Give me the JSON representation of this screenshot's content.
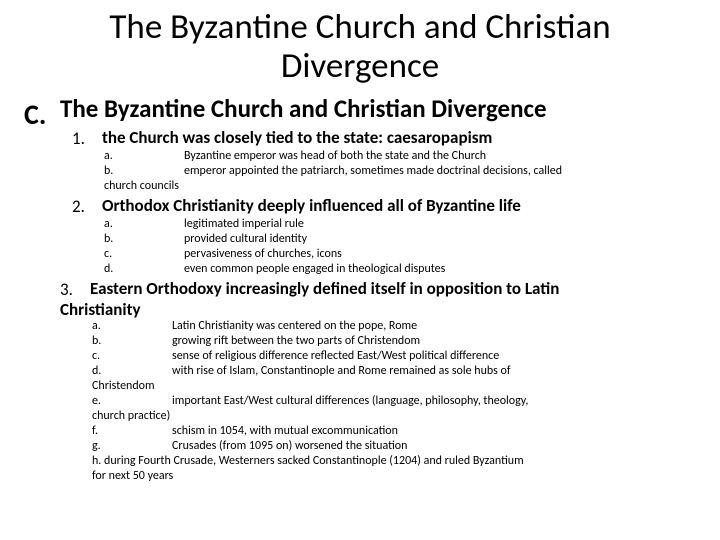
{
  "title": "The Byzantine Church and Christian Divergence",
  "outline_letter": "C.",
  "section_heading": "The Byzantine Church and Christian Divergence",
  "items": [
    {
      "num": "1.",
      "heading": "the Church was closely tied to the state: caesaropapism",
      "subs": [
        {
          "letter": "a.",
          "text": "Byzantine emperor was head of both the state and the Church"
        },
        {
          "letter": "b.",
          "text": "emperor appointed the patriarch, sometimes made doctrinal decisions, called"
        }
      ],
      "tail": "church councils"
    },
    {
      "num": "2.",
      "heading": "Orthodox Christianity deeply influenced all of Byzantine life",
      "subs": [
        {
          "letter": "a.",
          "text": "legitimated imperial rule"
        },
        {
          "letter": "b.",
          "text": "provided cultural identity"
        },
        {
          "letter": "c.",
          "text": "pervasiveness of churches, icons"
        },
        {
          "letter": "d.",
          "text": "even common people engaged in theological disputes"
        }
      ]
    },
    {
      "num": "3.",
      "heading_part1": "Eastern Orthodoxy increasingly defined itself in opposition to Latin",
      "heading_part2": "Christianity",
      "subs": [
        {
          "letter": "a.",
          "text": "Latin Christianity was centered on the pope, Rome"
        },
        {
          "letter": "b.",
          "text": "growing rift between the two parts of Christendom"
        },
        {
          "letter": "c.",
          "text": "sense of religious difference reflected East/West political difference"
        },
        {
          "letter": "d.",
          "text": "with rise of Islam, Constantinople and Rome remained as sole hubs of"
        }
      ],
      "tail1": "Christendom",
      "subs2": [
        {
          "letter": "e.",
          "text": "important East/West cultural differences (language, philosophy, theology,"
        }
      ],
      "tail2": "church practice)",
      "subs3": [
        {
          "letter": "f.",
          "text": "schism in 1054, with mutual excommunication"
        },
        {
          "letter": "g.",
          "text": "Crusades (from 1095 on) worsened the situation"
        }
      ],
      "sub_h": "h.   during Fourth Crusade, Westerners sacked Constantinople (1204) and ruled Byzantium",
      "tail3": "for next 50 years"
    }
  ]
}
